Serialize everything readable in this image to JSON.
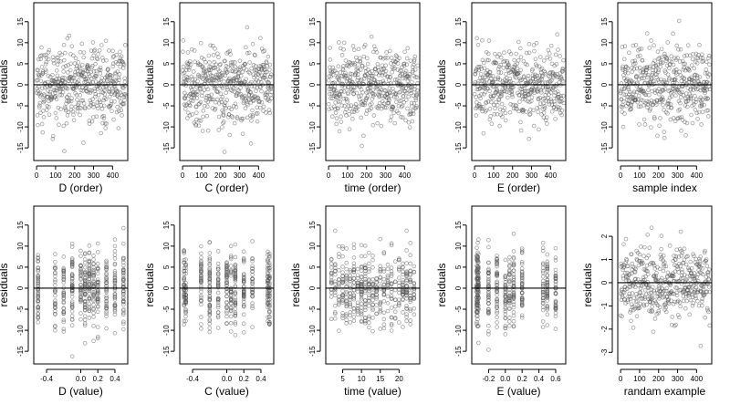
{
  "chart_data": [
    {
      "type": "scatter",
      "xlabel": "D (order)",
      "ylabel": "residuals",
      "xticks": [
        0,
        100,
        200,
        300,
        400
      ],
      "xtick_labels": [
        "0",
        "100",
        "200",
        "300",
        "400"
      ],
      "xlim": [
        -15,
        480
      ],
      "yticks": [
        -15,
        -10,
        -5,
        0,
        5,
        10,
        15
      ],
      "ytick_labels": [
        "-15",
        "-10",
        "-5",
        "0",
        "5",
        "10",
        "15"
      ],
      "ylim": [
        -18,
        19.5
      ],
      "zero_line": 0,
      "x_kind": "index",
      "n": 470,
      "spread": 6,
      "grid": false
    },
    {
      "type": "scatter",
      "xlabel": "C (order)",
      "ylabel": "residuals",
      "xticks": [
        0,
        100,
        200,
        300,
        400
      ],
      "xtick_labels": [
        "0",
        "100",
        "200",
        "300",
        "400"
      ],
      "xlim": [
        -15,
        480
      ],
      "yticks": [
        -15,
        -10,
        -5,
        0,
        5,
        10,
        15
      ],
      "ytick_labels": [
        "-15",
        "-10",
        "-5",
        "0",
        "5",
        "10",
        "15"
      ],
      "ylim": [
        -18,
        19.5
      ],
      "zero_line": 0,
      "x_kind": "index",
      "n": 470,
      "spread": 6,
      "grid": false
    },
    {
      "type": "scatter",
      "xlabel": "time (order)",
      "ylabel": "residuals",
      "xticks": [
        0,
        100,
        200,
        300,
        400
      ],
      "xtick_labels": [
        "0",
        "100",
        "200",
        "300",
        "400"
      ],
      "xlim": [
        -15,
        480
      ],
      "yticks": [
        -15,
        -10,
        -5,
        0,
        5,
        10,
        15
      ],
      "ytick_labels": [
        "-15",
        "-10",
        "-5",
        "0",
        "5",
        "10",
        "15"
      ],
      "ylim": [
        -18,
        19.5
      ],
      "zero_line": 0,
      "x_kind": "index",
      "n": 470,
      "spread": 6,
      "grid": false
    },
    {
      "type": "scatter",
      "xlabel": "E (order)",
      "ylabel": "residuals",
      "xticks": [
        0,
        100,
        200,
        300,
        400
      ],
      "xtick_labels": [
        "0",
        "100",
        "200",
        "300",
        "400"
      ],
      "xlim": [
        -15,
        480
      ],
      "yticks": [
        -15,
        -10,
        -5,
        0,
        5,
        10,
        15
      ],
      "ytick_labels": [
        "-15",
        "-10",
        "-5",
        "0",
        "5",
        "10",
        "15"
      ],
      "ylim": [
        -18,
        19.5
      ],
      "zero_line": 0,
      "x_kind": "index",
      "n": 470,
      "spread": 6,
      "grid": false
    },
    {
      "type": "scatter",
      "xlabel": "sample index",
      "ylabel": "residuals",
      "xticks": [
        0,
        100,
        200,
        300,
        400
      ],
      "xtick_labels": [
        "0",
        "100",
        "200",
        "300",
        "400"
      ],
      "xlim": [
        -15,
        480
      ],
      "yticks": [
        -15,
        -10,
        -5,
        0,
        5,
        10,
        15
      ],
      "ytick_labels": [
        "-15",
        "-10",
        "-5",
        "0",
        "5",
        "10",
        "15"
      ],
      "ylim": [
        -18,
        19.5
      ],
      "zero_line": 0,
      "x_kind": "index",
      "n": 470,
      "spread": 6,
      "grid": false
    },
    {
      "type": "scatter",
      "xlabel": "D (value)",
      "ylabel": "residuals",
      "xticks": [
        -0.4,
        0.0,
        0.2,
        0.4
      ],
      "xtick_labels": [
        "-0.4",
        "0.0",
        "0.2",
        "0.4"
      ],
      "xlim": [
        -0.55,
        0.55
      ],
      "yticks": [
        -15,
        -10,
        -5,
        0,
        5,
        10,
        15
      ],
      "ytick_labels": [
        "-15",
        "-10",
        "-5",
        "0",
        "5",
        "10",
        "15"
      ],
      "ylim": [
        -18,
        19.5
      ],
      "zero_line": 0,
      "x_kind": "values",
      "x_values": [
        -0.5,
        -0.3,
        -0.2,
        -0.1,
        0.0,
        0.05,
        0.1,
        0.15,
        0.2,
        0.3,
        0.4,
        0.5
      ],
      "n": 470,
      "spread": 6,
      "grid": false
    },
    {
      "type": "scatter",
      "xlabel": "C (value)",
      "ylabel": "residuals",
      "xticks": [
        -0.4,
        0.0,
        0.2,
        0.4
      ],
      "xtick_labels": [
        "-0.4",
        "0.0",
        "0.2",
        "0.4"
      ],
      "xlim": [
        -0.55,
        0.55
      ],
      "yticks": [
        -15,
        -10,
        -5,
        0,
        5,
        10,
        15
      ],
      "ytick_labels": [
        "-15",
        "-10",
        "-5",
        "0",
        "5",
        "10",
        "15"
      ],
      "ylim": [
        -18,
        19.5
      ],
      "zero_line": 0,
      "x_kind": "values",
      "x_values": [
        -0.5,
        -0.48,
        -0.3,
        -0.2,
        -0.1,
        0.0,
        0.05,
        0.1,
        0.2,
        0.3,
        0.48,
        0.5
      ],
      "n": 470,
      "spread": 6,
      "grid": false
    },
    {
      "type": "scatter",
      "xlabel": "time (value)",
      "ylabel": "residuals",
      "xticks": [
        5,
        10,
        15,
        20
      ],
      "xtick_labels": [
        "5",
        "10",
        "15",
        "20"
      ],
      "xlim": [
        0.5,
        25.5
      ],
      "yticks": [
        -15,
        -10,
        -5,
        0,
        5,
        10,
        15
      ],
      "ytick_labels": [
        "-15",
        "-10",
        "-5",
        "0",
        "5",
        "10",
        "15"
      ],
      "ylim": [
        -18,
        19.5
      ],
      "zero_line": 0,
      "x_kind": "values",
      "x_values": [
        2,
        3,
        4,
        5,
        6,
        7,
        8,
        9,
        10,
        11,
        12,
        13,
        14,
        15,
        16,
        17,
        18,
        19,
        20,
        21,
        22,
        23,
        24
      ],
      "n": 470,
      "spread": 6,
      "grid": false
    },
    {
      "type": "scatter",
      "xlabel": "E (value)",
      "ylabel": "residuals",
      "xticks": [
        -0.2,
        0.0,
        0.2,
        0.4,
        0.6
      ],
      "xtick_labels": [
        "-0.2",
        "0.0",
        "0.2",
        "0.4",
        "0.6"
      ],
      "xlim": [
        -0.4,
        0.72
      ],
      "yticks": [
        -15,
        -10,
        -5,
        0,
        5,
        10,
        15
      ],
      "ytick_labels": [
        "-15",
        "-10",
        "-5",
        "0",
        "5",
        "10",
        "15"
      ],
      "ylim": [
        -18,
        19.5
      ],
      "zero_line": 0,
      "x_kind": "values",
      "x_values": [
        -0.34,
        -0.33,
        -0.32,
        -0.2,
        -0.1,
        0.0,
        0.05,
        0.1,
        0.2,
        0.45,
        0.5,
        0.6
      ],
      "n": 470,
      "spread": 6,
      "grid": false
    },
    {
      "type": "scatter",
      "xlabel": "randam example",
      "ylabel": "residuals",
      "xticks": [
        0,
        100,
        200,
        300,
        400
      ],
      "xtick_labels": [
        "0",
        "100",
        "200",
        "300",
        "400"
      ],
      "xlim": [
        -15,
        480
      ],
      "yticks": [
        -3,
        -2,
        -1,
        0,
        1,
        2
      ],
      "ytick_labels": [
        "-3",
        "-2",
        "-1",
        "0",
        "1",
        "2"
      ],
      "ylim": [
        -3.5,
        3.3
      ],
      "zero_line": 0,
      "x_kind": "index",
      "n": 470,
      "spread": 1,
      "grid": false
    }
  ],
  "style": {
    "point_color": "#555555",
    "line_color": "#000000",
    "background": "#ffffff"
  }
}
